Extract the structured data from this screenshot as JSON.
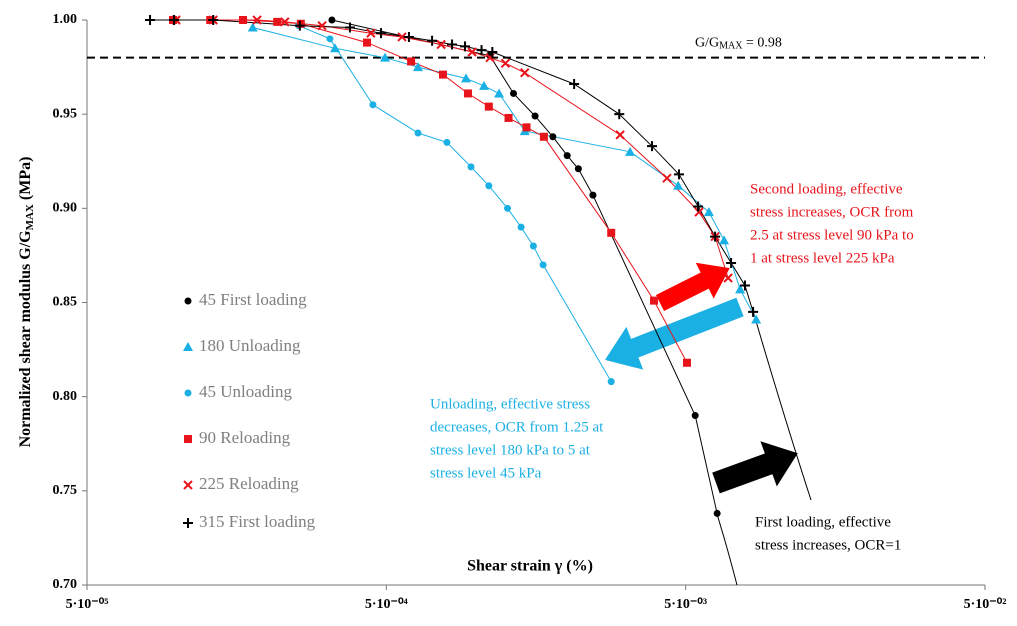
{
  "chart_data": {
    "type": "scatter",
    "x_log": true,
    "xlim": [
      5e-05,
      0.05
    ],
    "xticks": [
      {
        "value": 5e-05,
        "label": "5·10⁻⁰⁵"
      },
      {
        "value": 0.0005,
        "label": "5·10⁻⁰⁴"
      },
      {
        "value": 0.005,
        "label": "5·10⁻⁰³"
      },
      {
        "value": 0.05,
        "label": "5·10⁻⁰²"
      }
    ],
    "ylim": [
      0.7,
      1.0
    ],
    "yticks": [
      {
        "value": 0.7,
        "label": "0.70"
      },
      {
        "value": 0.75,
        "label": "0.75"
      },
      {
        "value": 0.8,
        "label": "0.80"
      },
      {
        "value": 0.85,
        "label": "0.85"
      },
      {
        "value": 0.9,
        "label": "0.90"
      },
      {
        "value": 0.95,
        "label": "0.95"
      },
      {
        "value": 1.0,
        "label": "1.00"
      }
    ],
    "x_label": "Shear strain γ (%)",
    "y_label": {
      "text": "Normalized shear modulus G/G",
      "sub": "MAX",
      "suffix": " (MPa)"
    },
    "reference_line": {
      "value": 0.98,
      "text": "G/G",
      "sub": "MAX",
      "suffix": " = 0.98"
    },
    "series": [
      {
        "name": "45 First loading",
        "color": "#000000",
        "marker": "circle",
        "x": [
          0.000329,
          0.00111,
          0.00133,
          0.00157,
          0.0018,
          0.00201,
          0.00219,
          0.00245,
          0.00538,
          0.00637
        ],
        "values": [
          1.0,
          0.981,
          0.961,
          0.949,
          0.938,
          0.928,
          0.921,
          0.907,
          0.79,
          0.738
        ]
      },
      {
        "name": "180 Unloading",
        "color": "#1bb0e4",
        "marker": "triangle",
        "x": [
          0.000179,
          0.000337,
          0.000495,
          0.000638,
          0.000923,
          0.00106,
          0.00119,
          0.00145,
          0.00326,
          0.00472,
          0.00598,
          0.00672,
          0.0076,
          0.0086
        ],
        "values": [
          0.996,
          0.985,
          0.98,
          0.975,
          0.969,
          0.965,
          0.961,
          0.941,
          0.93,
          0.912,
          0.898,
          0.883,
          0.857,
          0.841
        ]
      },
      {
        "name": "45 Unloading",
        "color": "#1bb0e4",
        "marker": "circle",
        "x": [
          0.000255,
          0.000324,
          0.000451,
          0.000638,
          0.000797,
          0.000959,
          0.0011,
          0.00127,
          0.00141,
          0.00155,
          0.00167,
          0.00282
        ],
        "values": [
          0.997,
          0.99,
          0.955,
          0.94,
          0.935,
          0.922,
          0.912,
          0.9,
          0.89,
          0.88,
          0.87,
          0.808
        ]
      },
      {
        "name": "90 Reloading",
        "color": "#e8141b",
        "marker": "square",
        "x": [
          9.69e-05,
          0.000129,
          0.000166,
          0.000216,
          0.000259,
          0.000431,
          0.000605,
          0.000773,
          0.000937,
          0.0011,
          0.00128,
          0.00147,
          0.00168,
          0.00282,
          0.00392,
          0.00505
        ],
        "values": [
          1.0,
          1.0,
          1.0,
          0.999,
          0.998,
          0.988,
          0.978,
          0.971,
          0.961,
          0.954,
          0.948,
          0.943,
          0.938,
          0.887,
          0.851,
          0.818
        ]
      },
      {
        "name": "225 Reloading",
        "color": "#e8141b",
        "marker": "x",
        "x": [
          9.92e-05,
          0.000132,
          0.000185,
          0.000229,
          0.000305,
          0.000444,
          0.000564,
          0.000762,
          0.000967,
          0.00111,
          0.00125,
          0.00145,
          0.00302,
          0.00433,
          0.00554,
          0.00627,
          0.00693
        ],
        "values": [
          1.0,
          1.0,
          1.0,
          0.999,
          0.997,
          0.993,
          0.991,
          0.987,
          0.983,
          0.98,
          0.977,
          0.972,
          0.939,
          0.916,
          0.898,
          0.885,
          0.863
        ]
      },
      {
        "name": "315 First loading",
        "color": "#000000",
        "marker": "plus",
        "x": [
          8.12e-05,
          9.77e-05,
          0.000132,
          0.000257,
          0.000378,
          0.00048,
          0.000595,
          0.000711,
          0.000829,
          0.000916,
          0.00104,
          0.00113,
          0.00212,
          0.003,
          0.00386,
          0.00475,
          0.0055,
          0.00627,
          0.00709,
          0.00789,
          0.0084
        ],
        "values": [
          1.0,
          1.0,
          1.0,
          0.997,
          0.996,
          0.993,
          0.991,
          0.989,
          0.987,
          0.986,
          0.984,
          0.983,
          0.966,
          0.95,
          0.933,
          0.918,
          0.901,
          0.885,
          0.871,
          0.859,
          0.845
        ]
      }
    ],
    "annotations": [
      {
        "color": "#e8141b",
        "lines": [
          "Second loading, effective",
          "stress increases, OCR from",
          "2.5 at stress level 90 kPa to",
          "1 at stress level 225 kPa"
        ]
      },
      {
        "color": "#1bb0e4",
        "lines": [
          "Unloading, effective stress",
          "decreases, OCR from 1.25 at",
          "stress level 180 kPa to 5 at",
          "stress level 45 kPa"
        ]
      },
      {
        "color": "#000000",
        "lines": [
          "First loading, effective",
          "stress increases, OCR=1"
        ]
      }
    ]
  }
}
